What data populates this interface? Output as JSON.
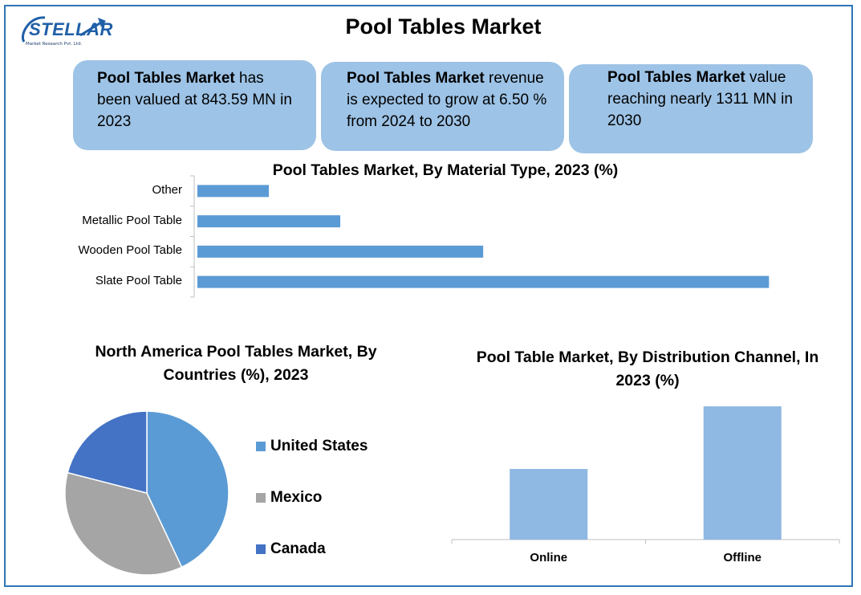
{
  "logo": {
    "name": "STELLAR",
    "subtitle": "Market Research Pvt. Ltd."
  },
  "title": "Pool Tables Market",
  "cards": [
    {
      "bold": "Pool Tables Market",
      "text": " has been valued at 843.59 MN in 2023"
    },
    {
      "bold": "Pool Tables Market",
      "text": " revenue is expected to grow at 6.50 % from 2024 to 2030"
    },
    {
      "bold": "Pool Tables Market",
      "text": " value reaching nearly 1311 MN in 2030"
    }
  ],
  "chart_data": [
    {
      "type": "bar",
      "orientation": "horizontal",
      "title": "Pool Tables Market, By Material Type, 2023 (%)",
      "categories": [
        "Other",
        "Metallic Pool Table",
        "Wooden Pool Table",
        "Slate Pool Table"
      ],
      "values": [
        6,
        12,
        24,
        48
      ],
      "xlim": [
        0,
        50
      ],
      "color": "#5B9BD5",
      "grid": false
    },
    {
      "type": "pie",
      "title": "North America Pool Tables Market, By Countries (%), 2023",
      "labels": [
        "United States",
        "Mexico",
        "Canada"
      ],
      "values": [
        43,
        36,
        21
      ],
      "colors": [
        "#5B9BD5",
        "#A5A5A5",
        "#4472C4"
      ],
      "legend": "right"
    },
    {
      "type": "bar",
      "orientation": "vertical",
      "title": "Pool Table Market, By Distribution Channel, In 2023 (%)",
      "categories": [
        "Online",
        "Offline"
      ],
      "values": [
        35,
        66
      ],
      "ylim": [
        0,
        70
      ],
      "color": "#8FB8E3",
      "grid": false
    }
  ]
}
